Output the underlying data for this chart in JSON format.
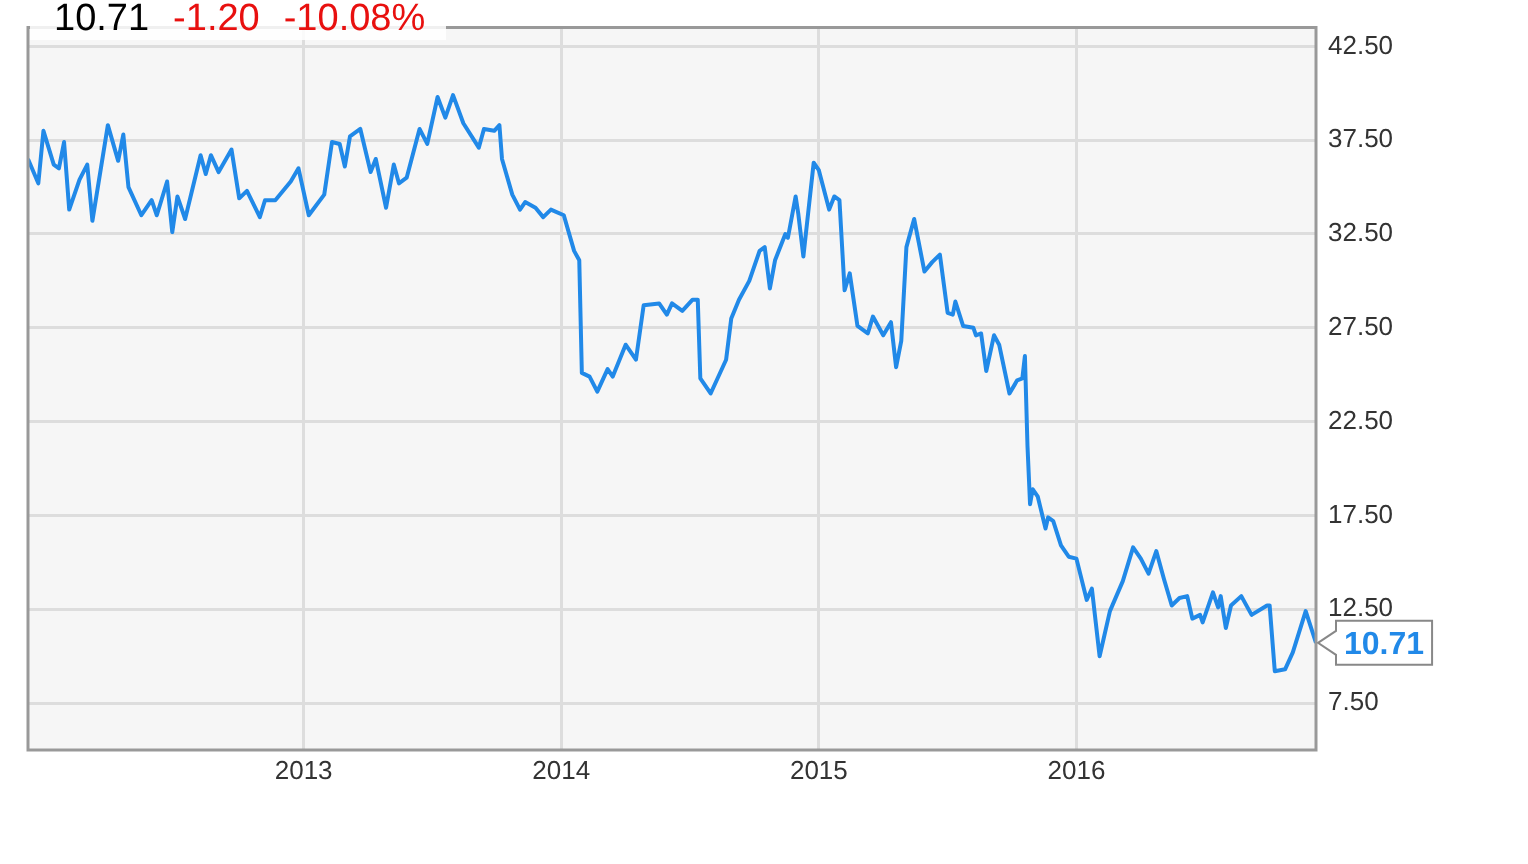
{
  "chart_data": {
    "type": "line",
    "title": "10.71",
    "annotations": [
      "-1.20",
      "-10.08%",
      {
        "text": "10.71",
        "x": 2016.93,
        "y": 10.71
      }
    ],
    "xlim": [
      2011.93,
      2016.93
    ],
    "xticks": [
      2013,
      2014,
      2015,
      2016
    ],
    "ylim": [
      5.0,
      43.5
    ],
    "yticks": [
      {
        "value": 7.5,
        "label": "7.50"
      },
      {
        "value": 12.5,
        "label": "12.50"
      },
      {
        "value": 17.5,
        "label": "17.50"
      },
      {
        "value": 22.5,
        "label": "22.50"
      },
      {
        "value": 27.5,
        "label": "27.50"
      },
      {
        "value": 32.5,
        "label": "32.50"
      },
      {
        "value": 37.5,
        "label": "37.50"
      },
      {
        "value": 42.5,
        "label": "42.50"
      }
    ],
    "grid": true,
    "legend": false,
    "marker": "none",
    "line_style": "solid",
    "series": [
      {
        "color": "#2189e8",
        "x": [
          2011.93,
          2011.97,
          2011.99,
          2012.03,
          2012.05,
          2012.07,
          2012.09,
          2012.13,
          2012.16,
          2012.18,
          2012.24,
          2012.28,
          2012.3,
          2012.32,
          2012.37,
          2012.41,
          2012.43,
          2012.47,
          2012.49,
          2012.51,
          2012.54,
          2012.6,
          2012.62,
          2012.64,
          2012.67,
          2012.72,
          2012.75,
          2012.78,
          2012.83,
          2012.85,
          2012.89,
          2012.95,
          2012.98,
          2013.02,
          2013.08,
          2013.11,
          2013.14,
          2013.16,
          2013.18,
          2013.22,
          2013.26,
          2013.28,
          2013.32,
          2013.35,
          2013.37,
          2013.4,
          2013.45,
          2013.48,
          2013.52,
          2013.55,
          2013.58,
          2013.62,
          2013.68,
          2013.7,
          2013.74,
          2013.76,
          2013.77,
          2013.81,
          2013.84,
          2013.86,
          2013.9,
          2013.93,
          2013.96,
          2014.01,
          2014.05,
          2014.07,
          2014.08,
          2014.11,
          2014.14,
          2014.18,
          2014.2,
          2014.25,
          2014.29,
          2014.32,
          2014.38,
          2014.41,
          2014.43,
          2014.47,
          2014.51,
          2014.53,
          2014.54,
          2014.58,
          2014.64,
          2014.66,
          2014.69,
          2014.73,
          2014.77,
          2014.79,
          2014.81,
          2014.83,
          2014.87,
          2014.88,
          2014.91,
          2014.92,
          2014.94,
          2014.98,
          2015.0,
          2015.04,
          2015.06,
          2015.08,
          2015.1,
          2015.12,
          2015.15,
          2015.19,
          2015.21,
          2015.25,
          2015.28,
          2015.3,
          2015.32,
          2015.34,
          2015.37,
          2015.41,
          2015.44,
          2015.47,
          2015.5,
          2015.52,
          2015.53,
          2015.56,
          2015.6,
          2015.61,
          2015.63,
          2015.65,
          2015.68,
          2015.7,
          2015.74,
          2015.77,
          2015.79,
          2015.8,
          2015.81,
          2015.82,
          2015.83,
          2015.85,
          2015.88,
          2015.89,
          2015.91,
          2015.94,
          2015.97,
          2016.0,
          2016.04,
          2016.06,
          2016.09,
          2016.13,
          2016.18,
          2016.22,
          2016.25,
          2016.28,
          2016.31,
          2016.34,
          2016.37,
          2016.4,
          2016.43,
          2016.45,
          2016.48,
          2016.49,
          2016.53,
          2016.55,
          2016.56,
          2016.58,
          2016.6,
          2016.64,
          2016.68,
          2016.74,
          2016.75,
          2016.77,
          2016.81,
          2016.84,
          2016.89,
          2016.93
        ],
        "values": [
          36.5,
          35.2,
          38.0,
          36.2,
          36.0,
          37.4,
          33.8,
          35.4,
          36.2,
          33.2,
          38.3,
          36.4,
          37.8,
          35.0,
          33.5,
          34.3,
          33.5,
          35.3,
          32.6,
          34.5,
          33.3,
          36.7,
          35.7,
          36.7,
          35.8,
          37.0,
          34.4,
          34.8,
          33.4,
          34.3,
          34.3,
          35.3,
          36.0,
          33.5,
          34.6,
          37.4,
          37.3,
          36.1,
          37.7,
          38.1,
          35.8,
          36.5,
          33.9,
          36.2,
          35.2,
          35.5,
          38.1,
          37.3,
          39.8,
          38.7,
          39.9,
          38.4,
          37.1,
          38.1,
          38.0,
          38.3,
          36.5,
          34.6,
          33.8,
          34.2,
          33.9,
          33.4,
          33.8,
          33.5,
          31.6,
          31.1,
          25.1,
          24.9,
          24.1,
          25.3,
          24.9,
          26.6,
          25.8,
          28.7,
          28.8,
          28.2,
          28.8,
          28.4,
          29.0,
          29.0,
          24.8,
          24.0,
          25.8,
          28.0,
          29.0,
          30.0,
          31.6,
          31.8,
          29.6,
          31.1,
          32.5,
          32.3,
          34.5,
          33.6,
          31.3,
          36.3,
          35.9,
          33.8,
          34.5,
          34.3,
          29.5,
          30.4,
          27.6,
          27.2,
          28.1,
          27.1,
          27.8,
          25.4,
          26.8,
          31.8,
          33.3,
          30.5,
          31.0,
          31.4,
          28.3,
          28.2,
          28.9,
          27.6,
          27.5,
          27.1,
          27.2,
          25.2,
          27.1,
          26.6,
          24.0,
          24.7,
          24.8,
          26.0,
          21.2,
          18.1,
          18.9,
          18.5,
          16.8,
          17.4,
          17.2,
          15.9,
          15.3,
          15.2,
          13.0,
          13.6,
          10.0,
          12.4,
          14.0,
          15.8,
          15.2,
          14.4,
          15.6,
          14.1,
          12.7,
          13.1,
          13.2,
          12.0,
          12.2,
          11.8,
          13.4,
          12.6,
          13.2,
          11.5,
          12.7,
          13.2,
          12.2,
          12.7,
          12.7,
          9.2,
          9.3,
          10.2,
          12.4,
          10.71
        ]
      }
    ]
  }
}
